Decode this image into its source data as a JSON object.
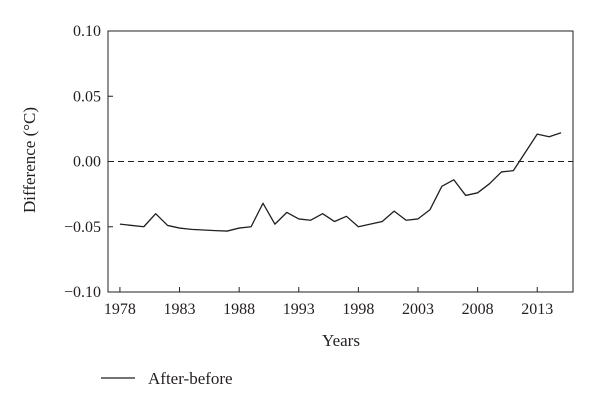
{
  "chart_data": {
    "type": "line",
    "xlabel": "Years",
    "ylabel": "Difference (°C)",
    "xlim": [
      1977,
      2016
    ],
    "ylim": [
      -0.1,
      0.1
    ],
    "x_ticks": [
      1978,
      1983,
      1988,
      1993,
      1998,
      2003,
      2008,
      2013
    ],
    "x_tick_labels": [
      "1978",
      "1983",
      "1988",
      "1993",
      "1998",
      "2003",
      "2008",
      "2013"
    ],
    "y_ticks": [
      -0.1,
      -0.05,
      0.0,
      0.05,
      0.1
    ],
    "y_tick_labels": [
      "−0.10",
      "−0.05",
      "0.00",
      "0.05",
      "0.10"
    ],
    "reference_line": {
      "y": 0.0,
      "style": "dashed"
    },
    "grid": false,
    "legend_position": "bottom-left",
    "colors": {
      "line": "#231f20",
      "axis": "#231f20"
    },
    "series": [
      {
        "name": "After-before",
        "x": [
          1978,
          1979,
          1980,
          1981,
          1982,
          1983,
          1984,
          1985,
          1986,
          1987,
          1988,
          1989,
          1990,
          1991,
          1992,
          1993,
          1994,
          1995,
          1996,
          1997,
          1998,
          1999,
          2000,
          2001,
          2002,
          2003,
          2004,
          2005,
          2006,
          2007,
          2008,
          2009,
          2010,
          2011,
          2012,
          2013,
          2014,
          2015
        ],
        "y": [
          -0.048,
          -0.049,
          -0.05,
          -0.04,
          -0.049,
          -0.051,
          -0.052,
          -0.0525,
          -0.053,
          -0.0533,
          -0.051,
          -0.05,
          -0.032,
          -0.048,
          -0.039,
          -0.044,
          -0.045,
          -0.04,
          -0.046,
          -0.042,
          -0.05,
          -0.048,
          -0.046,
          -0.038,
          -0.045,
          -0.044,
          -0.037,
          -0.019,
          -0.014,
          -0.026,
          -0.024,
          -0.017,
          -0.008,
          -0.007,
          0.007,
          0.021,
          0.019,
          0.022
        ]
      }
    ]
  }
}
